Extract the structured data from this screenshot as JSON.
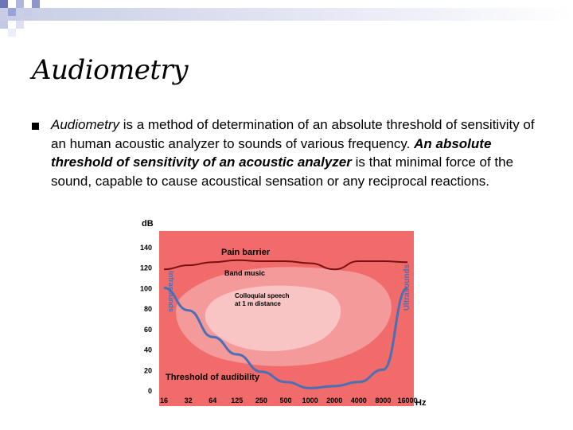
{
  "slide": {
    "title": "Audiometry",
    "bullet": {
      "part1_italic": "Audiometry",
      "part2": " is a method of determination of an absolute threshold of sensitivity of an human acoustic analyzer to sounds of various frequency. ",
      "part3_bold_italic": "An absolute threshold of sensitivity of an acoustic analyzer",
      "part4": " is that minimal force of the sound, capable to cause acoustical sensation or any reciprocal reactions."
    }
  },
  "chart_data": {
    "type": "area",
    "ylabel": "dB",
    "xlabel": "Hz",
    "y_ticks": [
      "140",
      "120",
      "100",
      "80",
      "60",
      "40",
      "20",
      "0"
    ],
    "x_ticks": [
      "16",
      "32",
      "64",
      "125",
      "250",
      "500",
      "1000",
      "2000",
      "4000",
      "8000",
      "16000"
    ],
    "ylim": [
      0,
      150
    ],
    "grid": false,
    "regions": [
      {
        "label": "Pain barrier"
      },
      {
        "label": "Band music"
      },
      {
        "label": "Colloquial speech\nat 1 m distance"
      },
      {
        "label": "Threshold of audibility"
      }
    ],
    "side_labels": {
      "left": "Infrasounds",
      "right": "Ultrasounds"
    },
    "pain_barrier_db": [
      118,
      122,
      125,
      127,
      126,
      126,
      124,
      118,
      126,
      126,
      125
    ],
    "threshold_db": [
      100,
      78,
      52,
      35,
      18,
      8,
      2,
      4,
      8,
      20,
      100
    ],
    "colors": {
      "background": "#f26b6b",
      "music": "#f49a9a",
      "speech": "#f9c4c4",
      "curve": "#4a6fb5",
      "barrier": "#7a1010"
    }
  }
}
